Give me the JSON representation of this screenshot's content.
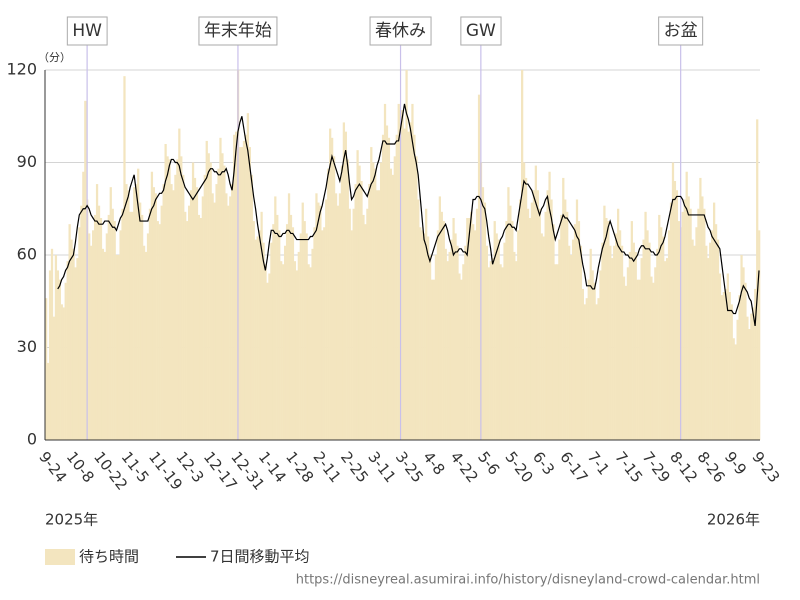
{
  "chart_data": {
    "type": "bar",
    "y_unit": "（分）",
    "categories": [
      "9-24",
      null,
      null,
      null,
      null,
      null,
      null,
      null,
      null,
      null,
      null,
      null,
      null,
      null,
      "10-8",
      null,
      null,
      null,
      null,
      null,
      null,
      null,
      null,
      null,
      null,
      null,
      null,
      null,
      "10-22",
      null,
      null,
      null,
      null,
      null,
      null,
      null,
      null,
      null,
      null,
      null,
      null,
      null,
      "11-5",
      null,
      null,
      null,
      null,
      null,
      null,
      null,
      null,
      null,
      null,
      null,
      null,
      null,
      "11-19",
      null,
      null,
      null,
      null,
      null,
      null,
      null,
      null,
      null,
      null,
      null,
      null,
      null,
      "12-3",
      null,
      null,
      null,
      null,
      null,
      null,
      null,
      null,
      null,
      null,
      null,
      null,
      null,
      "12-17",
      null,
      null,
      null,
      null,
      null,
      null,
      null,
      null,
      null,
      null,
      null,
      null,
      null,
      "12-31",
      null,
      null,
      null,
      null,
      null,
      null,
      null,
      null,
      null,
      null,
      null,
      null,
      null,
      "1-14",
      null,
      null,
      null,
      null,
      null,
      null,
      null,
      null,
      null,
      null,
      null,
      null,
      null,
      "1-28",
      null,
      null,
      null,
      null,
      null,
      null,
      null,
      null,
      null,
      null,
      null,
      null,
      null,
      "2-11",
      null,
      null,
      null,
      null,
      null,
      null,
      null,
      null,
      null,
      null,
      null,
      null,
      null,
      "2-25",
      null,
      null,
      null,
      null,
      null,
      null,
      null,
      null,
      null,
      null,
      null,
      null,
      null,
      "3-11",
      null,
      null,
      null,
      null,
      null,
      null,
      null,
      null,
      null,
      null,
      null,
      null,
      null,
      "3-25",
      null,
      null,
      null,
      null,
      null,
      null,
      null,
      null,
      null,
      null,
      null,
      null,
      null,
      "4-8",
      null,
      null,
      null,
      null,
      null,
      null,
      null,
      null,
      null,
      null,
      null,
      null,
      null,
      "4-22",
      null,
      null,
      null,
      null,
      null,
      null,
      null,
      null,
      null,
      null,
      null,
      null,
      null,
      "5-6",
      null,
      null,
      null,
      null,
      null,
      null,
      null,
      null,
      null,
      null,
      null,
      null,
      null,
      "5-20",
      null,
      null,
      null,
      null,
      null,
      null,
      null,
      null,
      null,
      null,
      null,
      null,
      null,
      "6-3",
      null,
      null,
      null,
      null,
      null,
      null,
      null,
      null,
      null,
      null,
      null,
      null,
      null,
      "6-17",
      null,
      null,
      null,
      null,
      null,
      null,
      null,
      null,
      null,
      null,
      null,
      null,
      null,
      "7-1",
      null,
      null,
      null,
      null,
      null,
      null,
      null,
      null,
      null,
      null,
      null,
      null,
      null,
      "7-15",
      null,
      null,
      null,
      null,
      null,
      null,
      null,
      null,
      null,
      null,
      null,
      null,
      null,
      "7-29",
      null,
      null,
      null,
      null,
      null,
      null,
      null,
      null,
      null,
      null,
      null,
      null,
      null,
      "8-12",
      null,
      null,
      null,
      null,
      null,
      null,
      null,
      null,
      null,
      null,
      null,
      null,
      null,
      "8-26",
      null,
      null,
      null,
      null,
      null,
      null,
      null,
      null,
      null,
      null,
      null,
      null,
      null,
      "9-9",
      null,
      null,
      null,
      null,
      null,
      null,
      null,
      null,
      null,
      null,
      null,
      null,
      null,
      "9-23"
    ],
    "series": [
      {
        "name": "待ち時間",
        "color": "#f3e5bf",
        "values": [
          46,
          25,
          55,
          62,
          40,
          60,
          55,
          52,
          44,
          43,
          51,
          58,
          70,
          65,
          62,
          56,
          59,
          69,
          76,
          87,
          110,
          78,
          67,
          63,
          68,
          73,
          83,
          76,
          72,
          62,
          61,
          67,
          73,
          82,
          75,
          71,
          60,
          60,
          68,
          75,
          118,
          83,
          81,
          74,
          74,
          82,
          83,
          88,
          77,
          73,
          63,
          61,
          67,
          75,
          87,
          82,
          80,
          71,
          70,
          76,
          83,
          96,
          92,
          91,
          83,
          81,
          86,
          91,
          101,
          92,
          86,
          74,
          71,
          76,
          81,
          90,
          85,
          82,
          73,
          72,
          79,
          86,
          97,
          93,
          90,
          80,
          77,
          83,
          88,
          98,
          93,
          89,
          80,
          76,
          79,
          83,
          99,
          100,
          120,
          95,
          95,
          97,
          99,
          106,
          95,
          86,
          71,
          65,
          66,
          68,
          74,
          64,
          57,
          51,
          54,
          64,
          70,
          79,
          73,
          68,
          58,
          57,
          63,
          70,
          80,
          73,
          69,
          58,
          55,
          61,
          67,
          77,
          71,
          67,
          57,
          56,
          62,
          69,
          80,
          77,
          76,
          68,
          69,
          78,
          88,
          101,
          98,
          92,
          80,
          76,
          80,
          89,
          103,
          100,
          91,
          75,
          68,
          75,
          83,
          94,
          89,
          84,
          73,
          70,
          75,
          83,
          95,
          90,
          88,
          81,
          81,
          90,
          99,
          109,
          102,
          98,
          88,
          86,
          92,
          99,
          109,
          107,
          107,
          101,
          120,
          100,
          103,
          109,
          99,
          92,
          78,
          69,
          68,
          67,
          75,
          66,
          60,
          52,
          52,
          60,
          68,
          79,
          74,
          71,
          62,
          58,
          61,
          65,
          72,
          67,
          63,
          54,
          52,
          57,
          63,
          72,
          72,
          74,
          70,
          68,
          75,
          112,
          90,
          82,
          77,
          63,
          56,
          58,
          59,
          71,
          67,
          65,
          57,
          56,
          64,
          71,
          82,
          76,
          71,
          61,
          58,
          68,
          78,
          120,
          90,
          85,
          75,
          72,
          77,
          81,
          89,
          81,
          75,
          67,
          66,
          74,
          81,
          87,
          78,
          70,
          57,
          57,
          65,
          73,
          85,
          78,
          74,
          63,
          60,
          65,
          70,
          78,
          71,
          63,
          49,
          44,
          46,
          52,
          62,
          55,
          51,
          44,
          46,
          55,
          64,
          76,
          72,
          71,
          63,
          59,
          63,
          67,
          75,
          68,
          63,
          53,
          50,
          56,
          61,
          71,
          64,
          61,
          52,
          52,
          59,
          65,
          74,
          68,
          64,
          53,
          51,
          56,
          62,
          73,
          69,
          66,
          58,
          59,
          68,
          77,
          90,
          84,
          81,
          71,
          69,
          74,
          78,
          87,
          79,
          75,
          65,
          63,
          69,
          75,
          85,
          79,
          75,
          63,
          59,
          64,
          68,
          77,
          70,
          65,
          54,
          47,
          48,
          49,
          54,
          48,
          44,
          33,
          31,
          39,
          47,
          60,
          56,
          51,
          40,
          36,
          41,
          43,
          49,
          104,
          68
        ]
      },
      {
        "name": "7日間移動平均",
        "color": "#000000",
        "type": "line",
        "values": [
          null,
          null,
          null,
          null,
          null,
          null,
          49,
          50,
          52,
          53,
          55,
          56,
          58,
          59,
          60,
          64,
          69,
          73,
          74,
          75,
          75,
          76,
          75,
          73,
          72,
          71,
          71,
          70,
          70,
          70,
          71,
          71,
          71,
          70,
          69,
          69,
          68,
          70,
          72,
          73,
          75,
          77,
          79,
          82,
          84,
          86,
          81,
          76,
          71,
          71,
          71,
          71,
          71,
          73,
          75,
          76,
          78,
          79,
          80,
          80,
          81,
          84,
          86,
          89,
          91,
          91,
          90,
          90,
          89,
          86,
          84,
          82,
          81,
          80,
          79,
          78,
          79,
          80,
          81,
          82,
          83,
          84,
          85,
          87,
          88,
          88,
          87,
          87,
          86,
          86,
          87,
          87,
          88,
          86,
          83,
          81,
          87,
          94,
          100,
          103,
          105,
          101,
          97,
          94,
          89,
          84,
          79,
          75,
          70,
          66,
          62,
          58,
          55,
          59,
          64,
          68,
          68,
          67,
          67,
          66,
          66,
          67,
          67,
          68,
          68,
          67,
          67,
          66,
          65,
          65,
          65,
          65,
          65,
          65,
          65,
          66,
          66,
          67,
          68,
          71,
          74,
          76,
          79,
          82,
          86,
          89,
          92,
          90,
          88,
          86,
          84,
          87,
          91,
          94,
          89,
          83,
          78,
          79,
          81,
          82,
          83,
          82,
          81,
          80,
          79,
          81,
          83,
          84,
          86,
          89,
          91,
          94,
          97,
          97,
          96,
          96,
          96,
          96,
          96,
          97,
          97,
          101,
          105,
          109,
          106,
          104,
          101,
          97,
          93,
          90,
          86,
          79,
          72,
          65,
          63,
          60,
          58,
          60,
          62,
          64,
          66,
          67,
          68,
          69,
          70,
          68,
          65,
          63,
          60,
          61,
          61,
          62,
          62,
          61,
          61,
          60,
          66,
          72,
          78,
          78,
          79,
          79,
          78,
          76,
          75,
          71,
          66,
          62,
          57,
          59,
          61,
          63,
          65,
          66,
          68,
          69,
          70,
          70,
          69,
          69,
          68,
          72,
          76,
          80,
          84,
          83,
          83,
          82,
          81,
          79,
          77,
          75,
          73,
          75,
          76,
          78,
          79,
          75,
          72,
          68,
          65,
          67,
          69,
          71,
          73,
          72,
          72,
          71,
          70,
          69,
          68,
          66,
          65,
          61,
          57,
          54,
          50,
          50,
          50,
          49,
          49,
          52,
          56,
          59,
          62,
          64,
          66,
          69,
          71,
          69,
          67,
          65,
          63,
          62,
          61,
          61,
          60,
          60,
          59,
          59,
          58,
          59,
          60,
          62,
          63,
          63,
          62,
          62,
          62,
          61,
          61,
          60,
          60,
          61,
          63,
          64,
          66,
          69,
          72,
          75,
          78,
          78,
          79,
          79,
          79,
          78,
          76,
          75,
          73,
          73,
          73,
          73,
          73,
          73,
          73,
          73,
          73,
          71,
          69,
          68,
          66,
          65,
          64,
          63,
          62,
          57,
          52,
          47,
          42,
          42,
          42,
          41,
          41,
          43,
          45,
          48,
          50,
          49,
          48,
          46,
          45,
          41,
          37,
          46,
          55
        ]
      }
    ],
    "ylim": [
      0,
      120
    ],
    "yticks": [
      0,
      30,
      60,
      90,
      120
    ],
    "grid": true,
    "annotations": [
      {
        "text": "HW",
        "x": 21
      },
      {
        "text": "年末年始",
        "x": 98
      },
      {
        "text": "春休み",
        "x": 181
      },
      {
        "text": "GW",
        "x": 222
      },
      {
        "text": "お盆",
        "x": 324
      }
    ],
    "year_labels": [
      "2025年",
      "2026年"
    ],
    "source": "https://disneyreal.asumirai.info/history/disneyland-crowd-calendar.html"
  }
}
